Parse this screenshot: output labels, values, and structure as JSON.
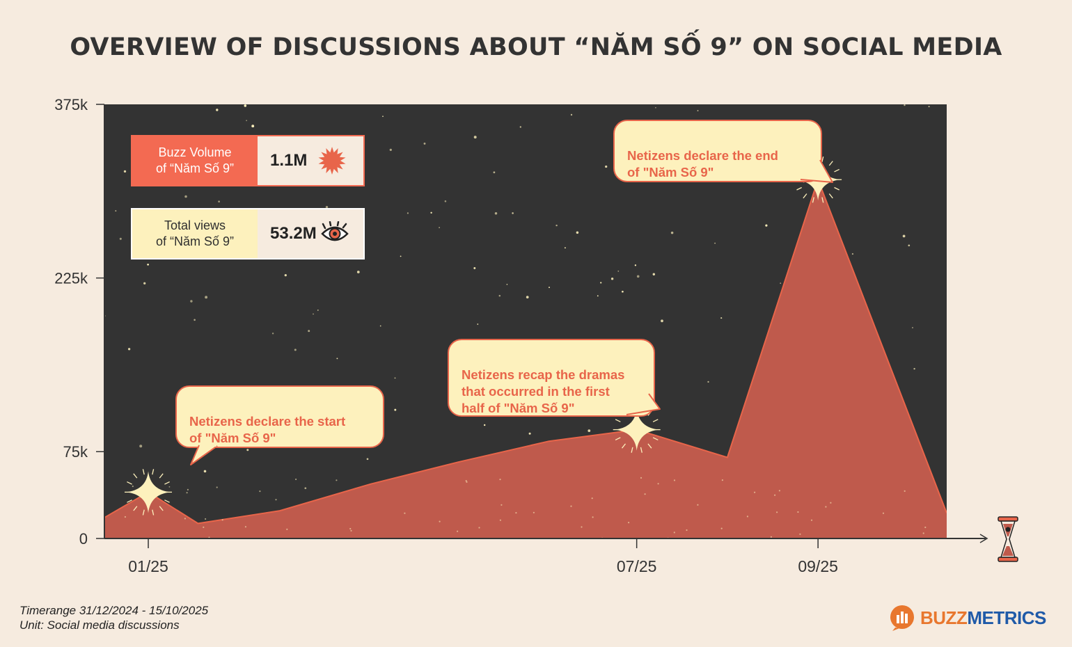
{
  "title": "OVERVIEW OF DISCUSSIONS ABOUT “NĂM SỐ 9” ON SOCIAL MEDIA",
  "colors": {
    "background": "#f6ebdf",
    "plot_background": "#333333",
    "area_fill": "#bf5a4c",
    "area_stroke": "#e8654a",
    "accent": "#e8654a",
    "callout_fill": "#fdf1bd",
    "star": "#fdf1bd"
  },
  "cards": [
    {
      "label": "Buzz Volume\nof “Năm Số 9”",
      "value": "1.1M",
      "icon": "sunburst-icon",
      "color": "#f36a52",
      "text_color": "#ffffff"
    },
    {
      "label": "Total views\nof “Năm Số 9”",
      "value": "53.2M",
      "icon": "eye-icon",
      "color": "#fdf1bd",
      "text_color": "#2f2f2f"
    }
  ],
  "callouts": [
    {
      "text": "Netizens declare the start\nof \"Năm Số 9\""
    },
    {
      "text": "Netizens recap the dramas\nthat occurred in the first\nhalf of \"Năm Số 9\""
    },
    {
      "text": "Netizens declare the end\nof \"Năm Số 9\""
    }
  ],
  "chart_data": {
    "type": "area",
    "title": "OVERVIEW OF DISCUSSIONS ABOUT “NĂM SỐ 9” ON SOCIAL MEDIA",
    "x": [
      "2024-12-31",
      "2025-01-15",
      "2025-02-01",
      "2025-03-01",
      "2025-04-01",
      "2025-05-01",
      "2025-06-01",
      "2025-07-01",
      "2025-08-01",
      "2025-09-01",
      "2025-10-15"
    ],
    "values": [
      18000,
      40000,
      13000,
      24000,
      47000,
      66000,
      84000,
      94000,
      70000,
      310000,
      22000
    ],
    "xticks": [
      "01/25",
      "07/25",
      "09/25"
    ],
    "yticks": [
      "0",
      "75k",
      "225k",
      "375k"
    ],
    "ylim": [
      0,
      375000
    ],
    "highlights": [
      {
        "x": "2025-01-15",
        "value": 40000
      },
      {
        "x": "2025-07-01",
        "value": 94000
      },
      {
        "x": "2025-09-01",
        "value": 310000
      }
    ]
  },
  "footer": {
    "timerange": "Timerange 31/12/2024 - 15/10/2025",
    "unit": "Unit: Social media discussions"
  },
  "brand": {
    "part1": "BUZZ",
    "part2": "METRICS"
  }
}
